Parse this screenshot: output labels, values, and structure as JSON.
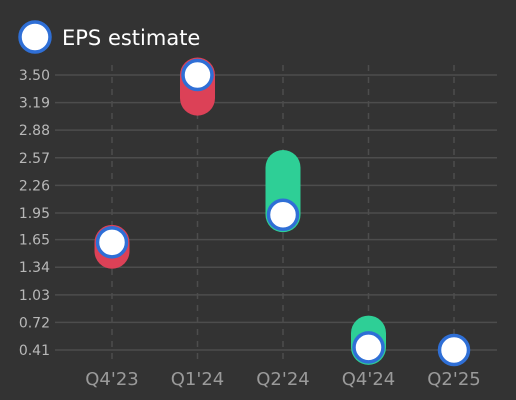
{
  "chart_data": {
    "type": "scatter",
    "legend": {
      "position": "top-left",
      "label": "EPS estimate"
    },
    "categories": [
      "Q4'23",
      "Q1'24",
      "Q2'24",
      "Q4'24",
      "Q2'25"
    ],
    "y_ticks": [
      "3.50",
      "3.19",
      "2.88",
      "2.57",
      "2.26",
      "1.95",
      "1.65",
      "1.34",
      "1.03",
      "0.72",
      "0.41"
    ],
    "ylim": [
      0.41,
      3.5
    ],
    "grid": true,
    "series": [
      {
        "name": "EPS estimate",
        "values": [
          1.62,
          3.5,
          1.93,
          0.44,
          0.41
        ]
      }
    ],
    "actuals": [
      1.52,
      3.24,
      2.46,
      0.6,
      null
    ],
    "colors": {
      "background": "#333333",
      "marker_fill": "#ffffff",
      "marker_stroke": "#2f6fd6",
      "beat": "#2ecf96",
      "miss": "#dc4157",
      "grid": "#4d4d4d"
    }
  }
}
